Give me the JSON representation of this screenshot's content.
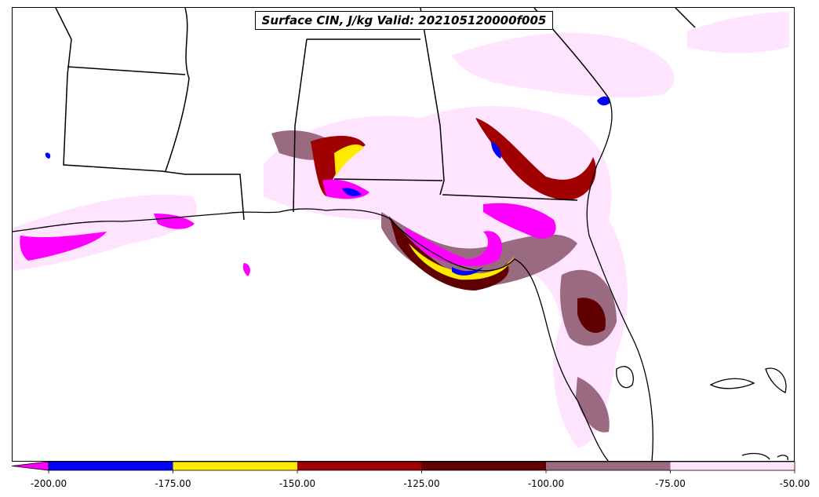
{
  "title": "Surface CIN, J/kg Valid: 202105120000f005",
  "colorbar": {
    "levels": [
      {
        "value": -200.0,
        "label": "-200.00"
      },
      {
        "value": -175.0,
        "label": "-175.00"
      },
      {
        "value": -150.0,
        "label": "-150.00"
      },
      {
        "value": -125.0,
        "label": "-125.00"
      },
      {
        "value": -100.0,
        "label": "-100.00"
      },
      {
        "value": -75.0,
        "label": "-75.00"
      },
      {
        "value": -50.0,
        "label": "-50.00"
      }
    ],
    "bin_colors": [
      "#0000ff",
      "#ffea00",
      "#a00000",
      "#600000",
      "#9a6a80",
      "#ffe4ff"
    ],
    "under_color": "#ff00ff",
    "extend": "min"
  },
  "colors": {
    "magenta": "#ff00ff",
    "blue": "#0000ff",
    "yellow": "#ffea00",
    "dark_red": "#a00000",
    "maroon": "#600000",
    "mauve": "#9a6a80",
    "light_pink": "#ffe4ff"
  }
}
